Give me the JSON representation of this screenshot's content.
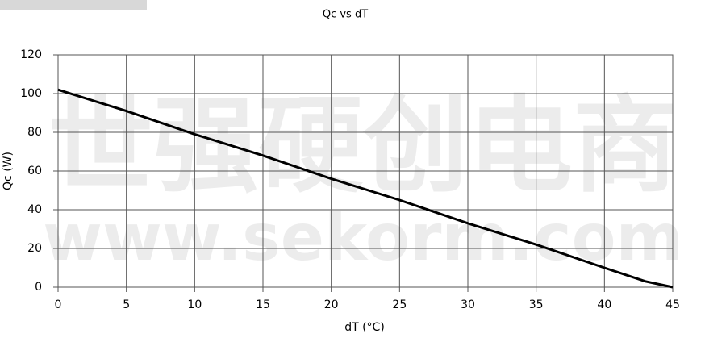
{
  "chart_data": {
    "type": "line",
    "title": "Qc vs dT",
    "xlabel": "dT (°C)",
    "ylabel": "Qc (W)",
    "x": [
      0,
      5,
      10,
      15,
      20,
      25,
      30,
      35,
      40,
      43,
      45
    ],
    "series": [
      {
        "name": "Qc",
        "color": "#000000",
        "values": [
          102,
          91,
          79,
          68,
          56,
          45,
          33,
          22,
          10,
          3,
          0
        ]
      }
    ],
    "xlim": [
      0,
      45
    ],
    "xticks": [
      0,
      5,
      10,
      15,
      20,
      25,
      30,
      35,
      40,
      45
    ],
    "ylim": [
      0,
      120
    ],
    "yticks": [
      0,
      20,
      40,
      60,
      80,
      100,
      120
    ],
    "grid": true,
    "watermark": [
      "世强硬创电商",
      "www.sekorm.com"
    ]
  }
}
